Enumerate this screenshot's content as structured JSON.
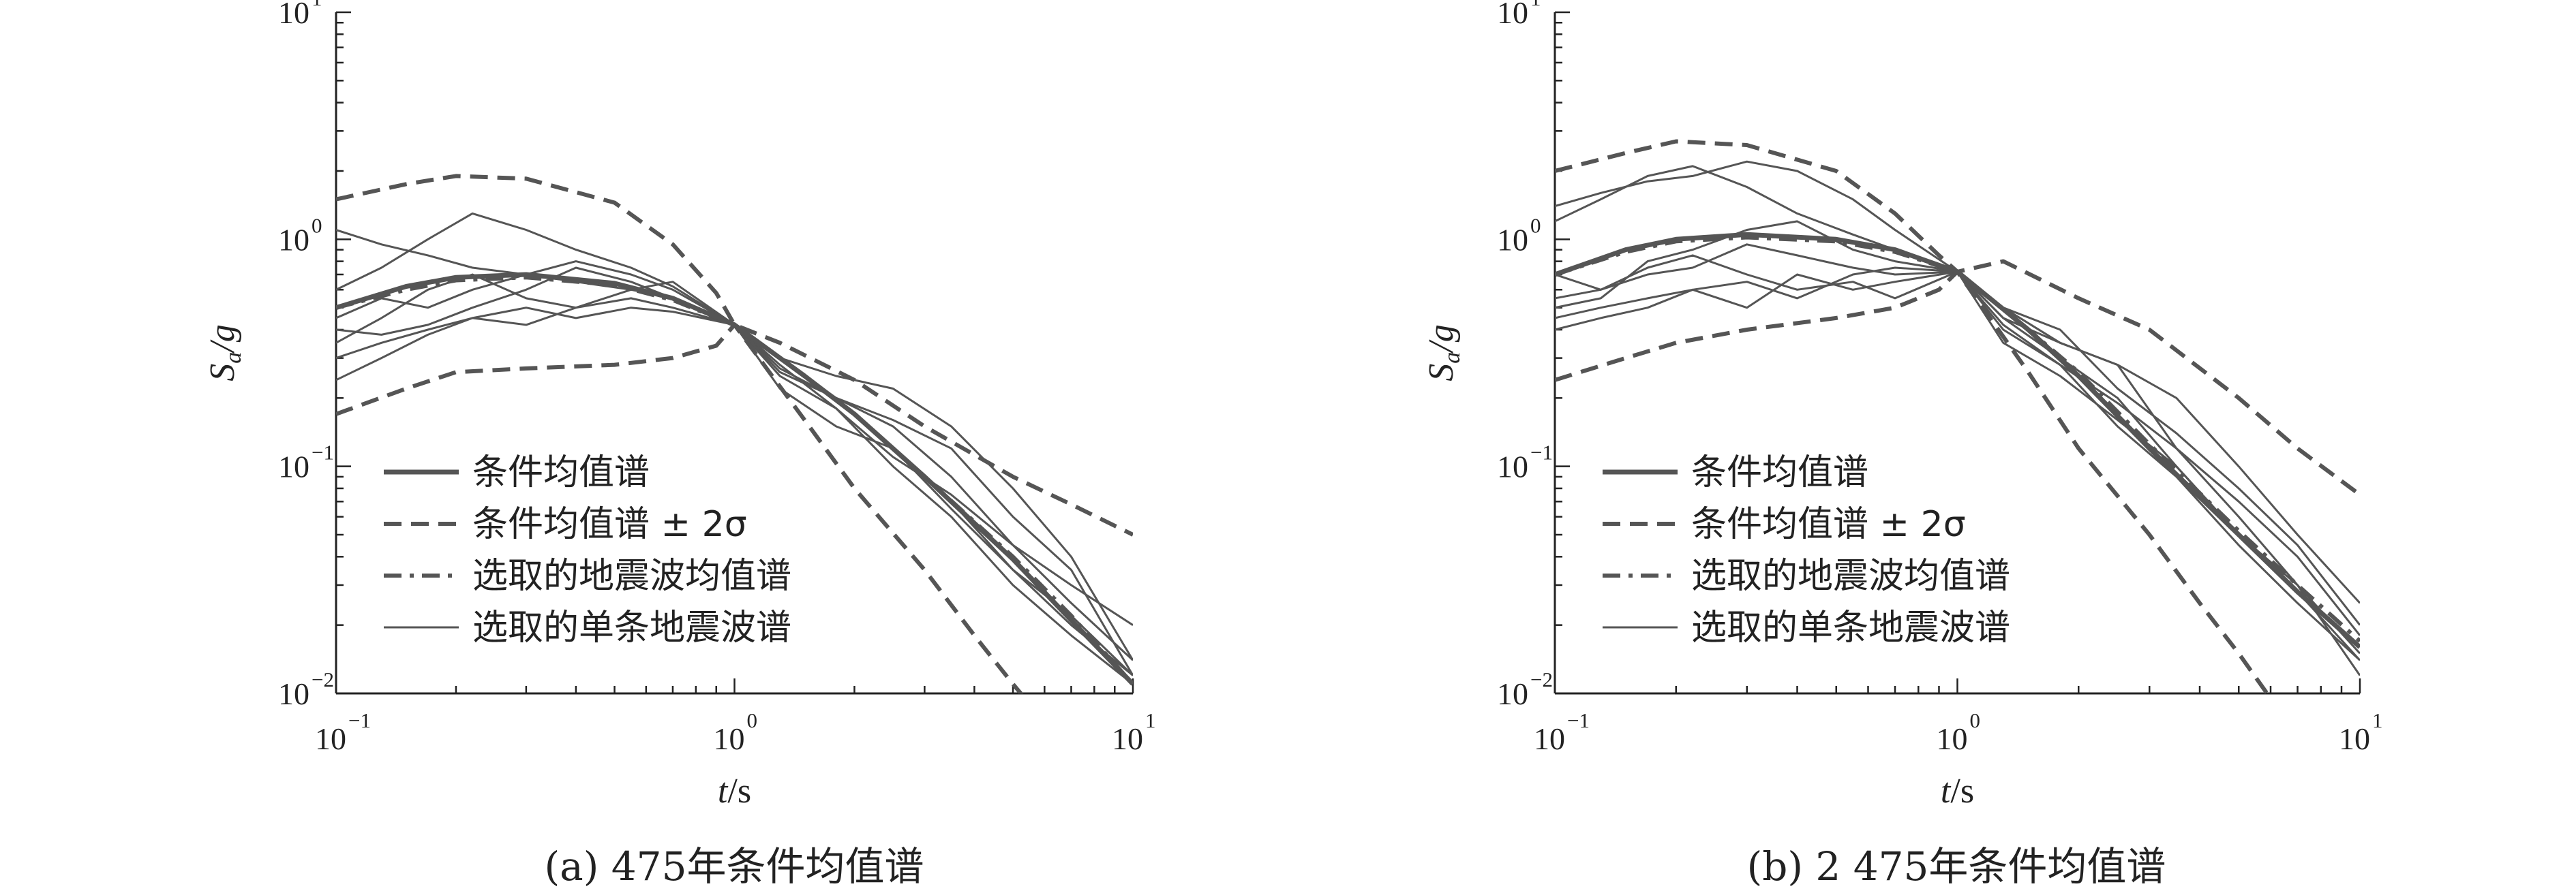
{
  "colors": {
    "series": "#555555",
    "axis": "#222222"
  },
  "chart_data": [
    {
      "type": "line",
      "caption": "(a) 475年条件均值谱",
      "xlabel_t": "t",
      "xlabel_unit": "/s",
      "ylabel_S": "S",
      "ylabel_sub": "a",
      "ylabel_g": "/g",
      "x_scale": "log",
      "y_scale": "log",
      "xlim": [
        0.1,
        10
      ],
      "ylim": [
        0.01,
        10
      ],
      "x_ticks": [
        {
          "base": "10",
          "exp": "−1"
        },
        {
          "base": "10",
          "exp": "0"
        },
        {
          "base": "10",
          "exp": "1"
        }
      ],
      "y_ticks": [
        {
          "base": "10",
          "exp": "−2"
        },
        {
          "base": "10",
          "exp": "−1"
        },
        {
          "base": "10",
          "exp": "0"
        },
        {
          "base": "10",
          "exp": "1"
        }
      ],
      "legend_position": "lower-left",
      "legend": [
        {
          "label": "条件均值谱",
          "style": "solid-thick"
        },
        {
          "label": "条件均值谱 ± 2σ",
          "style": "dashed"
        },
        {
          "label": "选取的地震波均值谱",
          "style": "dashdot"
        },
        {
          "label": "选取的单条地震波谱",
          "style": "solid-thin"
        }
      ],
      "series": [
        {
          "style": "solid-thick",
          "x": [
            0.1,
            0.15,
            0.2,
            0.3,
            0.5,
            0.7,
            1,
            1.5,
            2,
            3,
            5,
            7,
            10
          ],
          "y": [
            0.5,
            0.62,
            0.68,
            0.7,
            0.64,
            0.55,
            0.42,
            0.25,
            0.17,
            0.09,
            0.039,
            0.021,
            0.011
          ]
        },
        {
          "style": "dashdot",
          "x": [
            0.1,
            0.15,
            0.2,
            0.3,
            0.5,
            0.7,
            1,
            1.5,
            2,
            3,
            5,
            7,
            10
          ],
          "y": [
            0.5,
            0.6,
            0.66,
            0.68,
            0.63,
            0.54,
            0.42,
            0.25,
            0.17,
            0.09,
            0.04,
            0.022,
            0.011
          ]
        },
        {
          "style": "dashed",
          "x": [
            0.1,
            0.15,
            0.2,
            0.3,
            0.5,
            0.7,
            0.9,
            1,
            1.3,
            2,
            3,
            5,
            7,
            10
          ],
          "y": [
            1.5,
            1.75,
            1.9,
            1.85,
            1.45,
            0.95,
            0.58,
            0.42,
            0.35,
            0.24,
            0.15,
            0.09,
            0.068,
            0.05
          ]
        },
        {
          "style": "dashed",
          "x": [
            0.1,
            0.15,
            0.2,
            0.3,
            0.5,
            0.7,
            0.9,
            1,
            1.5,
            2,
            3,
            4,
            5,
            6
          ],
          "y": [
            0.17,
            0.22,
            0.26,
            0.27,
            0.28,
            0.3,
            0.34,
            0.42,
            0.16,
            0.08,
            0.035,
            0.018,
            0.011,
            0.0075
          ]
        },
        {
          "style": "solid-thin",
          "x": [
            0.1,
            0.13,
            0.17,
            0.22,
            0.3,
            0.4,
            0.55,
            0.7,
            1,
            1.3,
            1.8,
            2.5,
            3.5,
            5,
            7,
            10
          ],
          "y": [
            1.1,
            0.95,
            0.85,
            0.75,
            0.7,
            0.65,
            0.6,
            0.55,
            0.42,
            0.27,
            0.2,
            0.15,
            0.09,
            0.045,
            0.025,
            0.014
          ]
        },
        {
          "style": "solid-thin",
          "x": [
            0.1,
            0.13,
            0.17,
            0.22,
            0.3,
            0.4,
            0.55,
            0.7,
            1,
            1.3,
            1.8,
            2.5,
            3.5,
            5,
            7,
            10
          ],
          "y": [
            0.35,
            0.45,
            0.6,
            0.7,
            0.55,
            0.5,
            0.55,
            0.5,
            0.42,
            0.3,
            0.2,
            0.12,
            0.07,
            0.035,
            0.02,
            0.012
          ]
        },
        {
          "style": "solid-thin",
          "x": [
            0.1,
            0.13,
            0.17,
            0.22,
            0.3,
            0.4,
            0.55,
            0.7,
            1,
            1.3,
            1.8,
            2.5,
            3.5,
            5,
            7,
            10
          ],
          "y": [
            0.24,
            0.3,
            0.38,
            0.45,
            0.5,
            0.45,
            0.5,
            0.48,
            0.42,
            0.25,
            0.18,
            0.1,
            0.06,
            0.03,
            0.018,
            0.011
          ]
        },
        {
          "style": "solid-thin",
          "x": [
            0.1,
            0.13,
            0.17,
            0.22,
            0.3,
            0.4,
            0.55,
            0.7,
            1,
            1.3,
            1.8,
            2.5,
            3.5,
            5,
            7,
            10
          ],
          "y": [
            0.6,
            0.75,
            1.0,
            1.3,
            1.1,
            0.9,
            0.75,
            0.62,
            0.42,
            0.22,
            0.15,
            0.12,
            0.065,
            0.035,
            0.022,
            0.012
          ]
        },
        {
          "style": "solid-thin",
          "x": [
            0.1,
            0.13,
            0.17,
            0.22,
            0.3,
            0.4,
            0.55,
            0.7,
            1,
            1.3,
            1.8,
            2.5,
            3.5,
            5,
            7,
            10
          ],
          "y": [
            0.45,
            0.55,
            0.5,
            0.6,
            0.7,
            0.8,
            0.7,
            0.6,
            0.42,
            0.3,
            0.25,
            0.22,
            0.15,
            0.08,
            0.04,
            0.014
          ]
        },
        {
          "style": "solid-thin",
          "x": [
            0.1,
            0.13,
            0.17,
            0.22,
            0.3,
            0.4,
            0.55,
            0.7,
            1,
            1.3,
            1.8,
            2.5,
            3.5,
            5,
            7,
            10
          ],
          "y": [
            0.4,
            0.38,
            0.42,
            0.5,
            0.6,
            0.75,
            0.65,
            0.55,
            0.42,
            0.28,
            0.18,
            0.11,
            0.075,
            0.045,
            0.03,
            0.02
          ]
        },
        {
          "style": "solid-thin",
          "x": [
            0.1,
            0.13,
            0.17,
            0.22,
            0.3,
            0.4,
            0.55,
            0.7,
            1,
            1.3,
            1.8,
            2.5,
            3.5,
            5,
            7,
            10
          ],
          "y": [
            0.3,
            0.35,
            0.4,
            0.45,
            0.42,
            0.5,
            0.6,
            0.65,
            0.42,
            0.26,
            0.2,
            0.16,
            0.12,
            0.06,
            0.035,
            0.012
          ]
        }
      ]
    },
    {
      "type": "line",
      "caption": "(b) 2 475年条件均值谱",
      "xlabel_t": "t",
      "xlabel_unit": "/s",
      "ylabel_S": "S",
      "ylabel_sub": "a",
      "ylabel_g": "/g",
      "x_scale": "log",
      "y_scale": "log",
      "xlim": [
        0.1,
        10
      ],
      "ylim": [
        0.01,
        10
      ],
      "x_ticks": [
        {
          "base": "10",
          "exp": "−1"
        },
        {
          "base": "10",
          "exp": "0"
        },
        {
          "base": "10",
          "exp": "1"
        }
      ],
      "y_ticks": [
        {
          "base": "10",
          "exp": "−2"
        },
        {
          "base": "10",
          "exp": "−1"
        },
        {
          "base": "10",
          "exp": "0"
        },
        {
          "base": "10",
          "exp": "1"
        }
      ],
      "legend_position": "lower-left",
      "legend": [
        {
          "label": "条件均值谱",
          "style": "solid-thick"
        },
        {
          "label": "条件均值谱 ± 2σ",
          "style": "dashed"
        },
        {
          "label": "选取的地震波均值谱",
          "style": "dashdot"
        },
        {
          "label": "选取的单条地震波谱",
          "style": "solid-thin"
        }
      ],
      "series": [
        {
          "style": "solid-thick",
          "x": [
            0.1,
            0.15,
            0.2,
            0.3,
            0.5,
            0.7,
            1,
            1.5,
            2,
            3,
            5,
            7,
            10
          ],
          "y": [
            0.7,
            0.9,
            1.0,
            1.05,
            1.0,
            0.9,
            0.72,
            0.4,
            0.25,
            0.12,
            0.05,
            0.028,
            0.016
          ]
        },
        {
          "style": "dashdot",
          "x": [
            0.1,
            0.15,
            0.2,
            0.3,
            0.5,
            0.7,
            1,
            1.5,
            2,
            3,
            5,
            7,
            10
          ],
          "y": [
            0.7,
            0.88,
            0.98,
            1.02,
            0.98,
            0.88,
            0.72,
            0.4,
            0.26,
            0.125,
            0.052,
            0.03,
            0.017
          ]
        },
        {
          "style": "dashed",
          "x": [
            0.1,
            0.15,
            0.2,
            0.3,
            0.5,
            0.7,
            0.9,
            1,
            1.3,
            2,
            3,
            5,
            7,
            10
          ],
          "y": [
            2.0,
            2.4,
            2.7,
            2.6,
            2.0,
            1.3,
            0.85,
            0.72,
            0.8,
            0.55,
            0.4,
            0.2,
            0.12,
            0.075
          ]
        },
        {
          "style": "dashed",
          "x": [
            0.1,
            0.15,
            0.2,
            0.3,
            0.5,
            0.7,
            0.9,
            1,
            1.5,
            2,
            3,
            4,
            5,
            6
          ],
          "y": [
            0.24,
            0.3,
            0.35,
            0.4,
            0.45,
            0.5,
            0.6,
            0.72,
            0.26,
            0.12,
            0.05,
            0.025,
            0.015,
            0.0095
          ]
        },
        {
          "style": "solid-thin",
          "x": [
            0.1,
            0.13,
            0.17,
            0.22,
            0.3,
            0.4,
            0.55,
            0.7,
            1,
            1.3,
            1.8,
            2.5,
            3.5,
            5,
            7,
            10
          ],
          "y": [
            1.4,
            1.6,
            1.8,
            1.9,
            2.2,
            2.0,
            1.5,
            1.1,
            0.72,
            0.45,
            0.35,
            0.28,
            0.2,
            0.1,
            0.05,
            0.025
          ]
        },
        {
          "style": "solid-thin",
          "x": [
            0.1,
            0.13,
            0.17,
            0.22,
            0.3,
            0.4,
            0.55,
            0.7,
            1,
            1.3,
            1.8,
            2.5,
            3.5,
            5,
            7,
            10
          ],
          "y": [
            1.2,
            1.5,
            1.9,
            2.1,
            1.7,
            1.3,
            1.05,
            0.9,
            0.72,
            0.42,
            0.28,
            0.15,
            0.09,
            0.045,
            0.025,
            0.014
          ]
        },
        {
          "style": "solid-thin",
          "x": [
            0.1,
            0.13,
            0.17,
            0.22,
            0.3,
            0.4,
            0.55,
            0.7,
            1,
            1.3,
            1.8,
            2.5,
            3.5,
            5,
            7,
            10
          ],
          "y": [
            0.4,
            0.45,
            0.5,
            0.6,
            0.65,
            0.55,
            0.7,
            0.75,
            0.72,
            0.5,
            0.35,
            0.28,
            0.12,
            0.06,
            0.03,
            0.015
          ]
        },
        {
          "style": "solid-thin",
          "x": [
            0.1,
            0.13,
            0.17,
            0.22,
            0.3,
            0.4,
            0.55,
            0.7,
            1,
            1.3,
            1.8,
            2.5,
            3.5,
            5,
            7,
            10
          ],
          "y": [
            0.55,
            0.6,
            0.7,
            0.75,
            0.95,
            0.85,
            0.75,
            0.7,
            0.72,
            0.45,
            0.3,
            0.2,
            0.1,
            0.05,
            0.028,
            0.014
          ]
        },
        {
          "style": "solid-thin",
          "x": [
            0.1,
            0.13,
            0.17,
            0.22,
            0.3,
            0.4,
            0.55,
            0.7,
            1,
            1.3,
            1.8,
            2.5,
            3.5,
            5,
            7,
            10
          ],
          "y": [
            0.7,
            0.6,
            0.75,
            0.85,
            0.7,
            0.6,
            0.65,
            0.55,
            0.72,
            0.35,
            0.25,
            0.16,
            0.1,
            0.05,
            0.03,
            0.012
          ]
        },
        {
          "style": "solid-thin",
          "x": [
            0.1,
            0.13,
            0.17,
            0.22,
            0.3,
            0.4,
            0.55,
            0.7,
            1,
            1.3,
            1.8,
            2.5,
            3.5,
            5,
            7,
            10
          ],
          "y": [
            0.5,
            0.55,
            0.8,
            0.9,
            1.1,
            1.2,
            0.9,
            0.8,
            0.72,
            0.5,
            0.4,
            0.22,
            0.14,
            0.08,
            0.045,
            0.02
          ]
        },
        {
          "style": "solid-thin",
          "x": [
            0.1,
            0.13,
            0.17,
            0.22,
            0.3,
            0.4,
            0.55,
            0.7,
            1,
            1.3,
            1.8,
            2.5,
            3.5,
            5,
            7,
            10
          ],
          "y": [
            0.45,
            0.5,
            0.55,
            0.6,
            0.5,
            0.7,
            0.6,
            0.65,
            0.72,
            0.4,
            0.28,
            0.19,
            0.12,
            0.07,
            0.04,
            0.018
          ]
        }
      ]
    }
  ]
}
